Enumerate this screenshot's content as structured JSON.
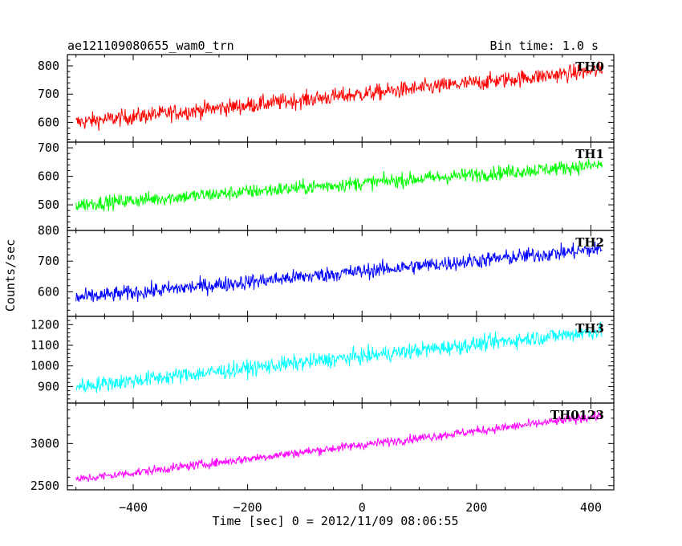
{
  "header": {
    "title": "ae121109080655_wam0_trn",
    "bin_time": "Bin time: 1.0 s"
  },
  "axes": {
    "xlabel": "Time [sec] 0 = 2012/11/09 08:06:55",
    "ylabel": "Counts/sec"
  },
  "chart_data": {
    "type": "line",
    "xlim": [
      -515,
      440
    ],
    "x_ticks": [
      -400,
      -200,
      0,
      200,
      400
    ],
    "x_tick_labels": [
      "−400",
      "−200",
      "0",
      "200",
      "400"
    ],
    "x_range": [
      -500,
      420
    ],
    "x_step": 1,
    "grid": false,
    "panels": [
      {
        "label": "TH0",
        "color": "#ff0000",
        "ylim": [
          530,
          840
        ],
        "y_ticks": [
          600,
          700,
          800
        ],
        "trend_start": 600,
        "trend_end": 785,
        "noise": 38
      },
      {
        "label": "TH1",
        "color": "#00ff00",
        "ylim": [
          410,
          720
        ],
        "y_ticks": [
          500,
          600,
          700
        ],
        "trend_start": 500,
        "trend_end": 640,
        "noise": 33
      },
      {
        "label": "TH2",
        "color": "#0000ff",
        "ylim": [
          520,
          800
        ],
        "y_ticks": [
          600,
          700,
          800
        ],
        "trend_start": 580,
        "trend_end": 740,
        "noise": 33
      },
      {
        "label": "TH3",
        "color": "#00ffff",
        "ylim": [
          820,
          1240
        ],
        "y_ticks": [
          900,
          1000,
          1100,
          1200
        ],
        "trend_start": 900,
        "trend_end": 1170,
        "noise": 50
      },
      {
        "label": "TH0123",
        "color": "#ff00ff",
        "ylim": [
          2450,
          3480
        ],
        "y_ticks": [
          2500,
          3000
        ],
        "trend_start": 2570,
        "trend_end": 3330,
        "noise": 70
      }
    ]
  }
}
